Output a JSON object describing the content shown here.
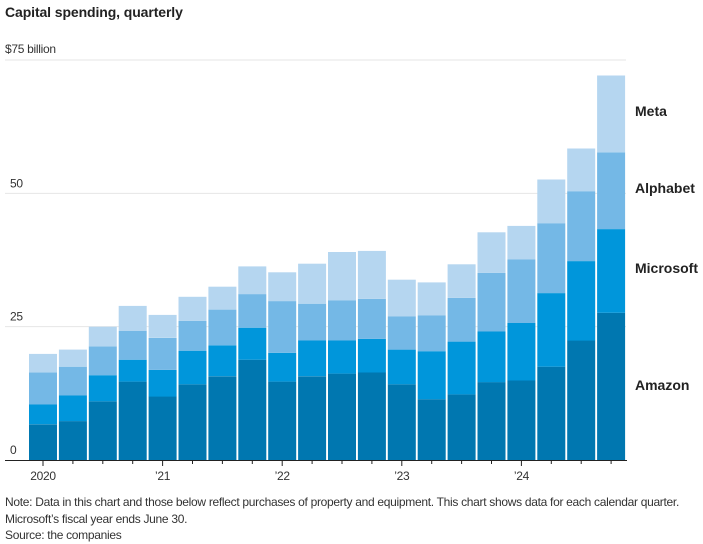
{
  "title": "Capital spending, quarterly",
  "unit_label": "$75 billion",
  "note": "Note: Data in this chart and those below reflect purchases of property and equipment. This chart shows data for each calendar quarter. Microsoft’s fiscal year ends June 30.",
  "source": "Source: the companies",
  "colors": {
    "Amazon": "#0077b0",
    "Microsoft": "#0096db",
    "Alphabet": "#74b8e6",
    "Meta": "#b5d6f0",
    "separator": "#ffffff",
    "grid": "#e6e6e6",
    "axis": "#222222"
  },
  "chart_data": {
    "type": "bar",
    "stacked": true,
    "title": "Capital spending, quarterly",
    "xlabel": "",
    "ylabel": "$ billion",
    "ylim": [
      0,
      75
    ],
    "yticks": [
      0,
      25,
      50,
      75
    ],
    "ytick_labels": [
      "0",
      "25",
      "50",
      "$75 billion"
    ],
    "grid": true,
    "legend": "direct labels at right",
    "categories": [
      "Q1 2020",
      "Q2 2020",
      "Q3 2020",
      "Q4 2020",
      "Q1 2021",
      "Q2 2021",
      "Q3 2021",
      "Q4 2021",
      "Q1 2022",
      "Q2 2022",
      "Q3 2022",
      "Q4 2022",
      "Q1 2023",
      "Q2 2023",
      "Q3 2023",
      "Q4 2023",
      "Q1 2024",
      "Q2 2024",
      "Q3 2024",
      "Q4 2024"
    ],
    "xtick_labels": [
      {
        "index": 0,
        "label": "2020"
      },
      {
        "index": 4,
        "label": "’21"
      },
      {
        "index": 8,
        "label": "’22"
      },
      {
        "index": 12,
        "label": "’23"
      },
      {
        "index": 16,
        "label": "’24"
      }
    ],
    "series": [
      {
        "name": "Amazon",
        "values": [
          6.7,
          7.3,
          11.0,
          14.7,
          11.9,
          14.2,
          15.7,
          18.8,
          14.7,
          15.7,
          16.2,
          16.4,
          14.2,
          11.4,
          12.3,
          14.6,
          14.9,
          17.5,
          22.4,
          27.6
        ]
      },
      {
        "name": "Microsoft",
        "values": [
          3.7,
          4.8,
          4.9,
          4.1,
          5.0,
          6.3,
          5.8,
          6.0,
          5.4,
          6.7,
          6.2,
          6.3,
          6.5,
          9.0,
          9.9,
          9.5,
          10.8,
          13.8,
          14.9,
          15.7
        ]
      },
      {
        "name": "Alphabet",
        "values": [
          6.0,
          5.4,
          5.4,
          5.4,
          6.0,
          5.6,
          6.7,
          6.3,
          9.7,
          6.9,
          7.5,
          7.5,
          6.2,
          6.7,
          8.2,
          11.0,
          11.9,
          13.1,
          13.1,
          14.4
        ]
      },
      {
        "name": "Meta",
        "values": [
          3.5,
          3.2,
          3.7,
          4.7,
          4.3,
          4.5,
          4.3,
          5.2,
          5.4,
          7.5,
          9.1,
          9.0,
          6.9,
          6.2,
          6.3,
          7.6,
          6.3,
          8.2,
          8.0,
          14.4
        ]
      }
    ]
  }
}
